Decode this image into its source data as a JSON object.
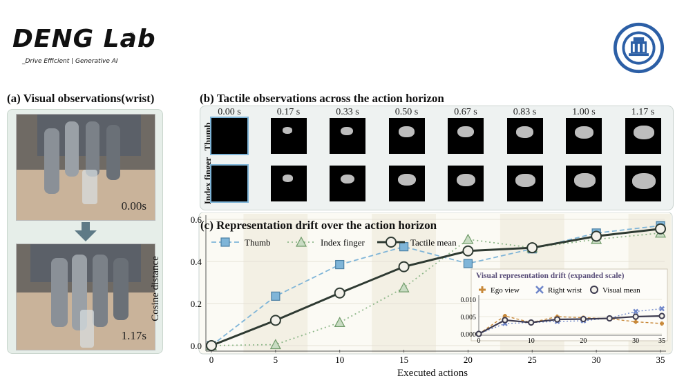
{
  "logo": {
    "name": "DENG Lab",
    "registered": "®",
    "tagline": "_Drive Efficient | Generative AI"
  },
  "seal_text": "SHANGHAI JIAO TONG UNIVERSITY",
  "panel_a": {
    "title": "(a) Visual observations(wrist)",
    "frames": [
      {
        "time": "0.00s"
      },
      {
        "time": "1.17s"
      }
    ]
  },
  "panel_b": {
    "title": "(b) Tactile observations across the action horizon",
    "times": [
      "0.00 s",
      "0.17 s",
      "0.33 s",
      "0.50 s",
      "0.67 s",
      "0.83 s",
      "1.00 s",
      "1.17 s"
    ],
    "rows": [
      "Thumb",
      "Index finger"
    ]
  },
  "chart_data": {
    "type": "line",
    "title": "(c) Representation drift over the action horizon",
    "xlabel": "Executed actions",
    "ylabel": "Cosine distance",
    "xlim": [
      0,
      35
    ],
    "ylim": [
      0,
      0.6
    ],
    "xticks": [
      0,
      5,
      10,
      15,
      20,
      25,
      30,
      35
    ],
    "yticks": [
      0.0,
      0.2,
      0.4,
      0.6
    ],
    "x": [
      0,
      5,
      10,
      15,
      20,
      25,
      30,
      35
    ],
    "legend_position": "top",
    "series": [
      {
        "name": "Thumb",
        "marker": "square",
        "values": [
          0.0,
          0.235,
          0.385,
          0.47,
          0.39,
          0.46,
          0.535,
          0.57
        ],
        "color": "#7fb5d8"
      },
      {
        "name": "Index finger",
        "marker": "triangle",
        "values": [
          0.0,
          0.005,
          0.11,
          0.275,
          0.505,
          0.465,
          0.505,
          0.535
        ],
        "color": "#8fb88a"
      },
      {
        "name": "Tactile mean",
        "marker": "circle",
        "values": [
          0.0,
          0.12,
          0.25,
          0.375,
          0.45,
          0.465,
          0.52,
          0.555
        ],
        "color": "#2e3a32"
      }
    ],
    "inset": {
      "title": "Visual representation drift (expanded scale)",
      "xlim": [
        0,
        35
      ],
      "ylim": [
        0,
        0.01
      ],
      "xticks": [
        0,
        10,
        20,
        30,
        35
      ],
      "yticks": [
        0.0,
        0.005,
        0.01
      ],
      "x": [
        0,
        5,
        10,
        15,
        20,
        25,
        30,
        35
      ],
      "series": [
        {
          "name": "Ego view",
          "marker": "plus",
          "values": [
            0.0,
            0.0052,
            0.0033,
            0.005,
            0.0047,
            0.0044,
            0.0035,
            0.003
          ],
          "color": "#c8893a"
        },
        {
          "name": "Right wrist",
          "marker": "x",
          "values": [
            0.0,
            0.003,
            0.0033,
            0.0036,
            0.0038,
            0.0046,
            0.0065,
            0.0073
          ],
          "color": "#6f86c9"
        },
        {
          "name": "Visual mean",
          "marker": "circle",
          "values": [
            0.0,
            0.004,
            0.0033,
            0.0042,
            0.0043,
            0.0045,
            0.005,
            0.0052
          ],
          "color": "#3d3b4f"
        }
      ]
    }
  }
}
